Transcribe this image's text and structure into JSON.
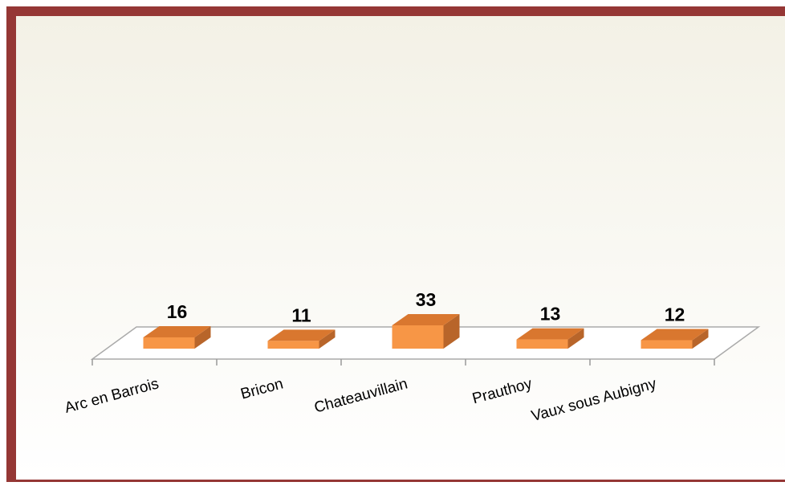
{
  "chart_data": {
    "type": "bar3d",
    "categories": [
      "Arc en Barrois",
      "Bricon",
      "Chateauvillain",
      "Prauthoy",
      "Vaux sous Aubigny"
    ],
    "values": [
      16,
      11,
      33,
      13,
      12
    ],
    "color": "#f79646"
  }
}
